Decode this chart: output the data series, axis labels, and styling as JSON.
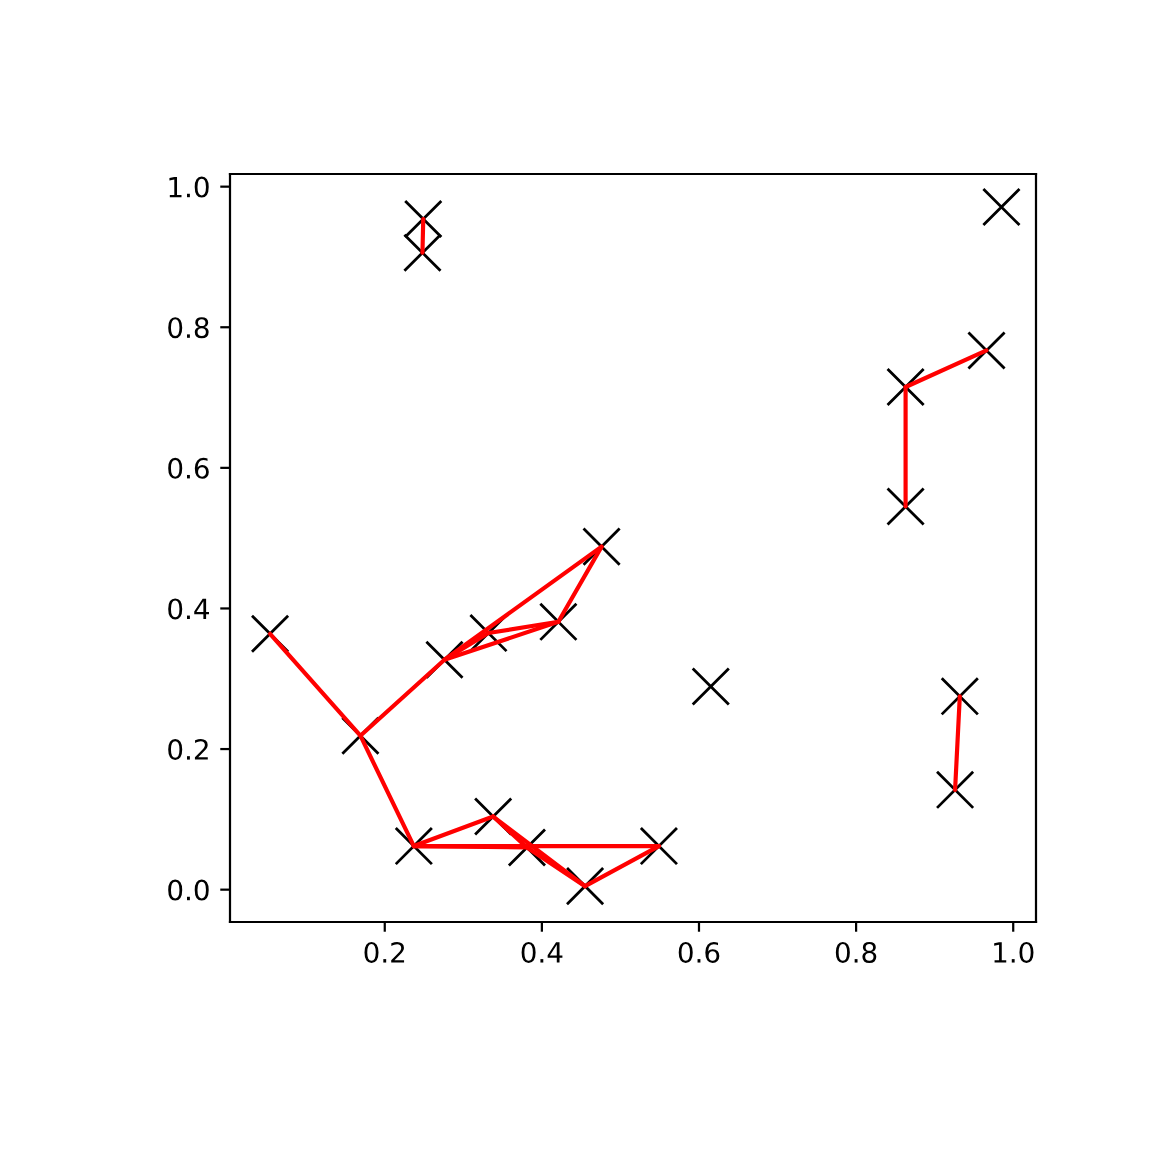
{
  "chart_data": {
    "type": "scatter",
    "xlim": [
      0.003,
      1.029
    ],
    "ylim": [
      -0.046,
      1.018
    ],
    "xticks": [
      0.2,
      0.4,
      0.6,
      0.8,
      {
        "value": 1.0,
        "label": "1.0"
      }
    ],
    "yticks": [
      {
        "value": 0,
        "label": "0.0"
      },
      0.2,
      0.4,
      0.6,
      0.8,
      {
        "value": 1.0,
        "label": "1.0"
      }
    ],
    "series": [
      {
        "marker": "cross",
        "color": "#000000",
        "x": [
          0.054,
          0.169,
          0.237,
          0.338,
          0.381,
          0.455,
          0.549,
          0.276,
          0.332,
          0.421,
          0.476,
          0.615,
          0.932,
          0.926,
          0.863,
          0.863,
          0.966,
          0.985,
          0.249,
          0.248
        ],
        "values": [
          0.364,
          0.219,
          0.062,
          0.104,
          0.06,
          0.005,
          0.062,
          0.327,
          0.365,
          0.381,
          0.488,
          0.289,
          0.275,
          0.142,
          0.715,
          0.545,
          0.767,
          0.971,
          0.954,
          0.906
        ]
      },
      {
        "type": "line",
        "color": "#ff0000",
        "x": [
          0.249,
          0.248
        ],
        "values": [
          0.954,
          0.906
        ]
      },
      {
        "type": "line",
        "color": "#ff0000",
        "x": [
          0.863,
          0.863
        ],
        "values": [
          0.715,
          0.545
        ]
      },
      {
        "type": "line",
        "color": "#ff0000",
        "x": [
          0.863,
          0.966
        ],
        "values": [
          0.715,
          0.767
        ]
      },
      {
        "type": "line",
        "color": "#ff0000",
        "x": [
          0.932,
          0.926
        ],
        "values": [
          0.275,
          0.142
        ]
      },
      {
        "type": "line",
        "color": "#ff0000",
        "x": [
          0.054,
          0.169
        ],
        "values": [
          0.364,
          0.219
        ]
      },
      {
        "type": "line",
        "color": "#ff0000",
        "x": [
          0.169,
          0.237
        ],
        "values": [
          0.219,
          0.062
        ]
      },
      {
        "type": "line",
        "color": "#ff0000",
        "x": [
          0.169,
          0.276
        ],
        "values": [
          0.219,
          0.327
        ]
      },
      {
        "type": "line",
        "color": "#ff0000",
        "x": [
          0.276,
          0.332
        ],
        "values": [
          0.327,
          0.365
        ]
      },
      {
        "type": "line",
        "color": "#ff0000",
        "x": [
          0.276,
          0.421
        ],
        "values": [
          0.327,
          0.381
        ]
      },
      {
        "type": "line",
        "color": "#ff0000",
        "x": [
          0.276,
          0.476
        ],
        "values": [
          0.327,
          0.488
        ]
      },
      {
        "type": "line",
        "color": "#ff0000",
        "x": [
          0.332,
          0.421
        ],
        "values": [
          0.365,
          0.381
        ]
      },
      {
        "type": "line",
        "color": "#ff0000",
        "x": [
          0.421,
          0.476
        ],
        "values": [
          0.381,
          0.488
        ]
      },
      {
        "type": "line",
        "color": "#ff0000",
        "x": [
          0.237,
          0.338
        ],
        "values": [
          0.062,
          0.104
        ]
      },
      {
        "type": "line",
        "color": "#ff0000",
        "x": [
          0.237,
          0.381
        ],
        "values": [
          0.062,
          0.06
        ]
      },
      {
        "type": "line",
        "color": "#ff0000",
        "x": [
          0.237,
          0.549
        ],
        "values": [
          0.062,
          0.062
        ]
      },
      {
        "type": "line",
        "color": "#ff0000",
        "x": [
          0.338,
          0.381
        ],
        "values": [
          0.104,
          0.06
        ]
      },
      {
        "type": "line",
        "color": "#ff0000",
        "x": [
          0.338,
          0.455
        ],
        "values": [
          0.104,
          0.005
        ]
      },
      {
        "type": "line",
        "color": "#ff0000",
        "x": [
          0.381,
          0.455
        ],
        "values": [
          0.06,
          0.005
        ]
      },
      {
        "type": "line",
        "color": "#ff0000",
        "x": [
          0.455,
          0.549
        ],
        "values": [
          0.005,
          0.062
        ]
      }
    ]
  }
}
